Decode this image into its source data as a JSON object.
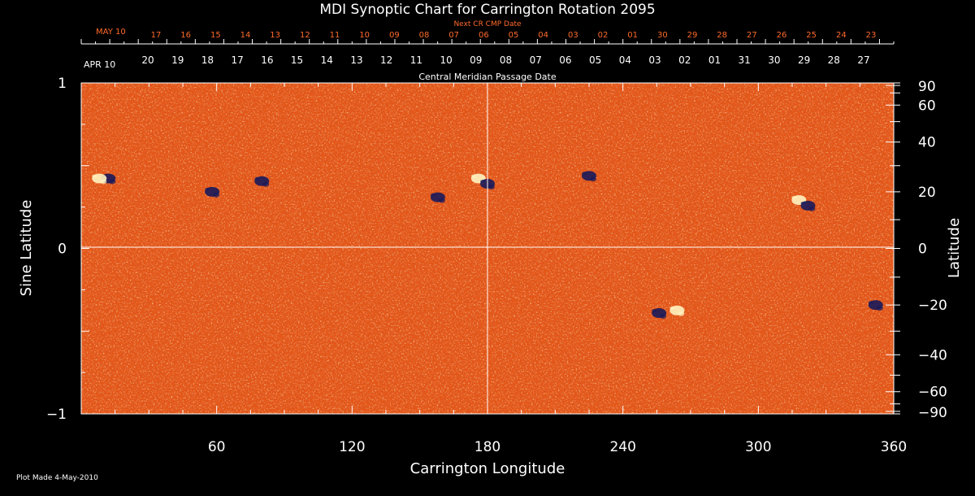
{
  "chart_data": {
    "type": "heatmap",
    "title": "MDI Synoptic Chart for Carrington Rotation 2095",
    "xlabel": "Carrington Longitude",
    "ylabel_left": "Sine Latitude",
    "ylabel_right": "Latitude",
    "top_axis_title": "Central Meridian Passage Date",
    "next_axis_title": "Next CR CMP Date",
    "xlim": [
      0,
      360
    ],
    "ylim": [
      -1,
      1
    ],
    "x_ticks": [
      60,
      120,
      180,
      240,
      300,
      360
    ],
    "left_ticks": [
      {
        "v": 1,
        "label": "1"
      },
      {
        "v": 0,
        "label": "0"
      },
      {
        "v": -1,
        "label": "−1"
      }
    ],
    "right_ticks": [
      90,
      60,
      40,
      20,
      0,
      -20,
      -40,
      -60,
      -90
    ],
    "right_tick_labels": [
      "90",
      "60",
      "40",
      "20",
      "0",
      "−20",
      "−40",
      "−60",
      "−90"
    ],
    "cmp_start_label": "APR 10",
    "cmp_dates": [
      "20",
      "19",
      "18",
      "17",
      "16",
      "15",
      "14",
      "13",
      "12",
      "11",
      "10",
      "09",
      "08",
      "07",
      "06",
      "05",
      "04",
      "03",
      "02",
      "01",
      "31",
      "30",
      "29",
      "28",
      "27"
    ],
    "next_start_label": "MAY 10",
    "next_dates": [
      "17",
      "16",
      "15",
      "14",
      "13",
      "12",
      "11",
      "10",
      "09",
      "08",
      "07",
      "06",
      "05",
      "04",
      "03",
      "02",
      "01",
      "30",
      "29",
      "28",
      "27",
      "26",
      "25",
      "24",
      "23"
    ],
    "colors": {
      "background": "#e85a1e",
      "positive": "#fff3c0",
      "negative": "#1a1a5a",
      "accent": "#ff6a2a"
    },
    "active_regions": [
      {
        "lon": 12,
        "lat": 25,
        "polarity": "negative"
      },
      {
        "lon": 8,
        "lat": 25,
        "polarity": "positive"
      },
      {
        "lon": 58,
        "lat": 20,
        "polarity": "negative"
      },
      {
        "lon": 80,
        "lat": 24,
        "polarity": "negative"
      },
      {
        "lon": 158,
        "lat": 18,
        "polarity": "negative"
      },
      {
        "lon": 176,
        "lat": 25,
        "polarity": "positive"
      },
      {
        "lon": 180,
        "lat": 23,
        "polarity": "negative"
      },
      {
        "lon": 225,
        "lat": 26,
        "polarity": "negative"
      },
      {
        "lon": 318,
        "lat": 17,
        "polarity": "positive"
      },
      {
        "lon": 322,
        "lat": 15,
        "polarity": "negative"
      },
      {
        "lon": 256,
        "lat": -23,
        "polarity": "negative"
      },
      {
        "lon": 264,
        "lat": -22,
        "polarity": "positive"
      },
      {
        "lon": 352,
        "lat": -20,
        "polarity": "negative"
      }
    ],
    "grid": "center crosshair"
  },
  "footer": {
    "plot_made": "Plot Made  4-May-2010"
  }
}
